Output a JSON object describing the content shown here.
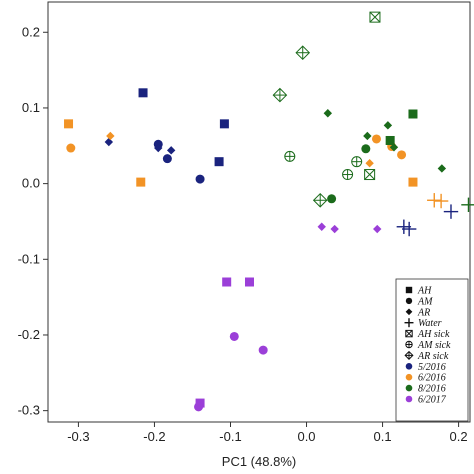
{
  "chart_data": {
    "type": "scatter",
    "title": "",
    "xlabel": "PC1 (48.8%)",
    "ylabel": "",
    "xlim": [
      -0.34,
      0.215
    ],
    "ylim": [
      -0.315,
      0.24
    ],
    "xticks": [
      -0.3,
      -0.2,
      -0.1,
      0.0,
      0.1,
      0.2
    ],
    "xtick_labels": [
      "-0.3",
      "-0.2",
      "-0.1",
      "0.0",
      "0.1",
      "0.2"
    ],
    "yticks": [
      -0.3,
      -0.2,
      -0.1,
      0.0,
      0.1,
      0.2
    ],
    "ytick_labels": [
      "-0.3",
      "-0.2",
      "-0.1",
      "0.0",
      "0.1",
      "0.2"
    ],
    "grid": false,
    "legend_position": "bottom-right",
    "colors": {
      "5/2016": "#1a237e",
      "6/2016": "#f29325",
      "8/2016": "#1b6b1b",
      "6/2017": "#9b3fd8"
    },
    "legend": {
      "shapes": [
        {
          "label": "AH",
          "marker": "square"
        },
        {
          "label": "AM",
          "marker": "circle"
        },
        {
          "label": "AR",
          "marker": "diamond"
        },
        {
          "label": "Water",
          "marker": "plus"
        },
        {
          "label": "AH sick",
          "marker": "square-x"
        },
        {
          "label": "AM sick",
          "marker": "circle-plus"
        },
        {
          "label": "AR sick",
          "marker": "diamond-plus"
        }
      ],
      "dates": [
        {
          "label": "5/2016",
          "marker": "circle",
          "group": "5/2016"
        },
        {
          "label": "6/2016",
          "marker": "circle",
          "group": "6/2016"
        },
        {
          "label": "8/2016",
          "marker": "circle",
          "group": "8/2016"
        },
        {
          "label": "6/2017",
          "marker": "circle",
          "group": "6/2017"
        }
      ]
    },
    "points": [
      {
        "x": -0.215,
        "y": 0.12,
        "marker": "square",
        "group": "5/2016"
      },
      {
        "x": -0.108,
        "y": 0.079,
        "marker": "square",
        "group": "5/2016"
      },
      {
        "x": -0.115,
        "y": 0.029,
        "marker": "square",
        "group": "5/2016"
      },
      {
        "x": -0.195,
        "y": 0.052,
        "marker": "circle",
        "group": "5/2016"
      },
      {
        "x": -0.183,
        "y": 0.033,
        "marker": "circle",
        "group": "5/2016"
      },
      {
        "x": -0.14,
        "y": 0.006,
        "marker": "circle",
        "group": "5/2016"
      },
      {
        "x": -0.26,
        "y": 0.055,
        "marker": "diamond",
        "group": "5/2016"
      },
      {
        "x": -0.195,
        "y": 0.047,
        "marker": "diamond",
        "group": "5/2016"
      },
      {
        "x": -0.178,
        "y": 0.044,
        "marker": "diamond",
        "group": "5/2016"
      },
      {
        "x": 0.128,
        "y": -0.057,
        "marker": "plus",
        "group": "5/2016"
      },
      {
        "x": 0.135,
        "y": -0.06,
        "marker": "plus",
        "group": "5/2016"
      },
      {
        "x": 0.19,
        "y": -0.037,
        "marker": "plus",
        "group": "5/2016"
      },
      {
        "x": -0.313,
        "y": 0.079,
        "marker": "square",
        "group": "6/2016"
      },
      {
        "x": -0.218,
        "y": 0.002,
        "marker": "square",
        "group": "6/2016"
      },
      {
        "x": 0.14,
        "y": 0.002,
        "marker": "square",
        "group": "6/2016"
      },
      {
        "x": -0.31,
        "y": 0.047,
        "marker": "circle",
        "group": "6/2016"
      },
      {
        "x": 0.092,
        "y": 0.059,
        "marker": "circle",
        "group": "6/2016"
      },
      {
        "x": 0.112,
        "y": 0.049,
        "marker": "circle",
        "group": "6/2016"
      },
      {
        "x": 0.125,
        "y": 0.038,
        "marker": "circle",
        "group": "6/2016"
      },
      {
        "x": -0.258,
        "y": 0.063,
        "marker": "diamond",
        "group": "6/2016"
      },
      {
        "x": 0.083,
        "y": 0.027,
        "marker": "diamond",
        "group": "6/2016"
      },
      {
        "x": 0.168,
        "y": -0.022,
        "marker": "plus",
        "group": "6/2016"
      },
      {
        "x": 0.177,
        "y": -0.023,
        "marker": "plus",
        "group": "6/2016"
      },
      {
        "x": 0.14,
        "y": 0.092,
        "marker": "square",
        "group": "8/2016"
      },
      {
        "x": 0.11,
        "y": 0.057,
        "marker": "square",
        "group": "8/2016"
      },
      {
        "x": 0.078,
        "y": 0.046,
        "marker": "circle",
        "group": "8/2016"
      },
      {
        "x": 0.033,
        "y": -0.02,
        "marker": "circle",
        "group": "8/2016"
      },
      {
        "x": 0.028,
        "y": 0.093,
        "marker": "diamond",
        "group": "8/2016"
      },
      {
        "x": 0.08,
        "y": 0.063,
        "marker": "diamond",
        "group": "8/2016"
      },
      {
        "x": 0.107,
        "y": 0.077,
        "marker": "diamond",
        "group": "8/2016"
      },
      {
        "x": 0.115,
        "y": 0.048,
        "marker": "diamond",
        "group": "8/2016"
      },
      {
        "x": 0.178,
        "y": 0.02,
        "marker": "diamond",
        "group": "8/2016"
      },
      {
        "x": 0.213,
        "y": -0.028,
        "marker": "plus",
        "group": "8/2016"
      },
      {
        "x": 0.09,
        "y": 0.22,
        "marker": "square-x",
        "group": "8/2016"
      },
      {
        "x": 0.083,
        "y": 0.012,
        "marker": "square-x",
        "group": "8/2016"
      },
      {
        "x": -0.022,
        "y": 0.036,
        "marker": "circle-plus",
        "group": "8/2016"
      },
      {
        "x": 0.054,
        "y": 0.012,
        "marker": "circle-plus",
        "group": "8/2016"
      },
      {
        "x": 0.066,
        "y": 0.029,
        "marker": "circle-plus",
        "group": "8/2016"
      },
      {
        "x": -0.005,
        "y": 0.173,
        "marker": "diamond-plus",
        "group": "8/2016"
      },
      {
        "x": -0.035,
        "y": 0.117,
        "marker": "diamond-plus",
        "group": "8/2016"
      },
      {
        "x": 0.018,
        "y": -0.022,
        "marker": "diamond-plus",
        "group": "8/2016"
      },
      {
        "x": -0.105,
        "y": -0.13,
        "marker": "square",
        "group": "6/2017"
      },
      {
        "x": -0.075,
        "y": -0.13,
        "marker": "square",
        "group": "6/2017"
      },
      {
        "x": -0.14,
        "y": -0.29,
        "marker": "square",
        "group": "6/2017"
      },
      {
        "x": -0.095,
        "y": -0.202,
        "marker": "circle",
        "group": "6/2017"
      },
      {
        "x": -0.057,
        "y": -0.22,
        "marker": "circle",
        "group": "6/2017"
      },
      {
        "x": -0.142,
        "y": -0.295,
        "marker": "circle",
        "group": "6/2017"
      },
      {
        "x": 0.02,
        "y": -0.057,
        "marker": "diamond",
        "group": "6/2017"
      },
      {
        "x": 0.037,
        "y": -0.06,
        "marker": "diamond",
        "group": "6/2017"
      },
      {
        "x": 0.093,
        "y": -0.06,
        "marker": "diamond",
        "group": "6/2017"
      }
    ]
  }
}
